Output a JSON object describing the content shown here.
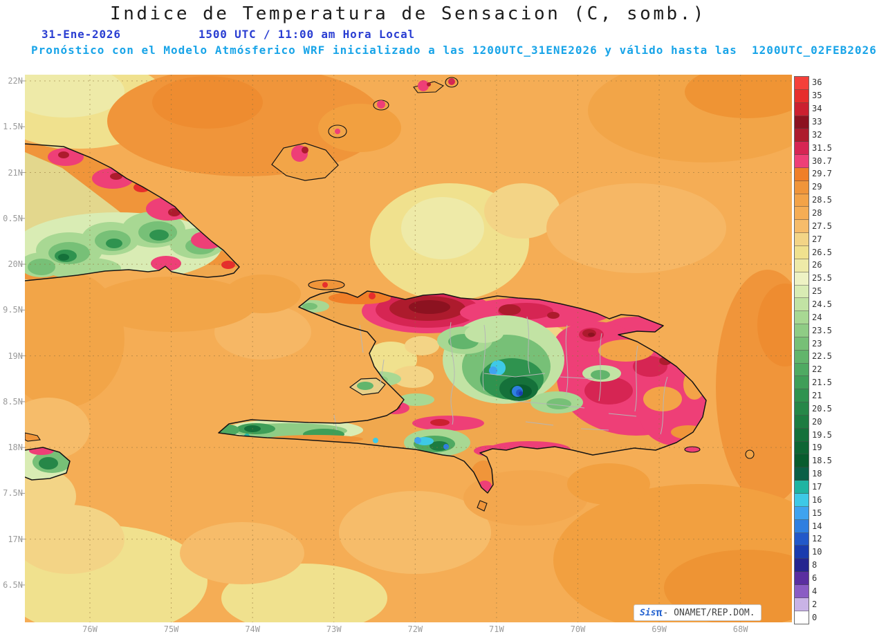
{
  "header": {
    "title": "Indice de Temperatura de Sensacion (C, somb.)",
    "date": "31-Ene-2026",
    "time": "1500 UTC / 11:00 am Hora Local",
    "forecast": "Pronóstico con el Modelo Atmósferico WRF inicializado a las 1200UTC_31ENE2026 y válido hasta las  1200UTC_02FEB2026"
  },
  "axes": {
    "x_ticks": [
      "76W",
      "75W",
      "74W",
      "73W",
      "72W",
      "71W",
      "70W",
      "69W",
      "68W"
    ],
    "y_ticks": [
      "22N",
      "1.5N",
      "21N",
      "0.5N",
      "20N",
      "9.5N",
      "19N",
      "8.5N",
      "18N",
      "7.5N",
      "17N",
      "6.5N"
    ]
  },
  "colorbar": {
    "entries": [
      {
        "label": "36",
        "color": "#f4403a"
      },
      {
        "label": "35",
        "color": "#e62e2c"
      },
      {
        "label": "34",
        "color": "#cb2030"
      },
      {
        "label": "33",
        "color": "#8c1220"
      },
      {
        "label": "32",
        "color": "#ad1b2d"
      },
      {
        "label": "31.5",
        "color": "#d62553"
      },
      {
        "label": "30.7",
        "color": "#ee3f77"
      },
      {
        "label": "29.7",
        "color": "#f07f28"
      },
      {
        "label": "29",
        "color": "#f0953a"
      },
      {
        "label": "28.5",
        "color": "#f3a348"
      },
      {
        "label": "28",
        "color": "#f5ad55"
      },
      {
        "label": "27.5",
        "color": "#f6bc6a"
      },
      {
        "label": "27",
        "color": "#f3d486"
      },
      {
        "label": "26.5",
        "color": "#f0e18e"
      },
      {
        "label": "26",
        "color": "#eeeaa8"
      },
      {
        "label": "25.5",
        "color": "#eef2c4"
      },
      {
        "label": "25",
        "color": "#d9ecb4"
      },
      {
        "label": "24.5",
        "color": "#c2e3a4"
      },
      {
        "label": "24",
        "color": "#a8d893"
      },
      {
        "label": "23.5",
        "color": "#8fcc85"
      },
      {
        "label": "23",
        "color": "#77c077"
      },
      {
        "label": "22.5",
        "color": "#62b56c"
      },
      {
        "label": "22",
        "color": "#4faa62"
      },
      {
        "label": "21.5",
        "color": "#3f9e58"
      },
      {
        "label": "21",
        "color": "#2f934f"
      },
      {
        "label": "20.5",
        "color": "#268748"
      },
      {
        "label": "20",
        "color": "#1d7c41"
      },
      {
        "label": "19.5",
        "color": "#15713a"
      },
      {
        "label": "19",
        "color": "#0e6634"
      },
      {
        "label": "18.5",
        "color": "#085c2e"
      },
      {
        "label": "18",
        "color": "#0a5f46"
      },
      {
        "label": "17",
        "color": "#1fb4a2"
      },
      {
        "label": "16",
        "color": "#3ec9e6"
      },
      {
        "label": "15",
        "color": "#3fa3ef"
      },
      {
        "label": "14",
        "color": "#2f7fe0"
      },
      {
        "label": "12",
        "color": "#2258c9"
      },
      {
        "label": "10",
        "color": "#1a3bae"
      },
      {
        "label": "8",
        "color": "#25258f"
      },
      {
        "label": "6",
        "color": "#5a2fa0"
      },
      {
        "label": "4",
        "color": "#8a5cc4"
      },
      {
        "label": "2",
        "color": "#c9b3e6"
      },
      {
        "label": "0",
        "color": "#ffffff"
      }
    ]
  },
  "watermark": {
    "brand": "Sis",
    "pi": "π",
    "text": "- ONAMET/REP.DOM."
  }
}
